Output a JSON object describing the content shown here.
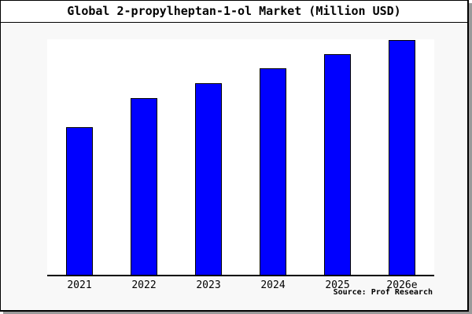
{
  "header": {
    "title": "Global 2-propylheptan-1-ol Market (Million USD)"
  },
  "footer": {
    "source": "Source: Prof Research"
  },
  "colors": {
    "bar_fill": "#0000ff",
    "bar_border": "#000000",
    "window_bg": "#f8f8f8",
    "title_band_bg": "#ffffff",
    "plot_bg": "#ffffff",
    "frame_border": "#000000",
    "shadow": "#9a9a9a",
    "text": "#000000"
  },
  "chart_data": {
    "type": "bar",
    "title": "Global 2-propylheptan-1-ol Market (Million USD)",
    "categories": [
      "2021",
      "2022",
      "2023",
      "2024",
      "2025",
      "2026e"
    ],
    "values": [
      188,
      225,
      244,
      263,
      281,
      299
    ],
    "value_note": "relative bar heights estimated from pixels; chart shows no numeric y-axis labels",
    "xlabel": "",
    "ylabel": "",
    "ylim": [
      0,
      300
    ],
    "grid": false,
    "legend": false,
    "annotation": "Source: Prof Research"
  }
}
